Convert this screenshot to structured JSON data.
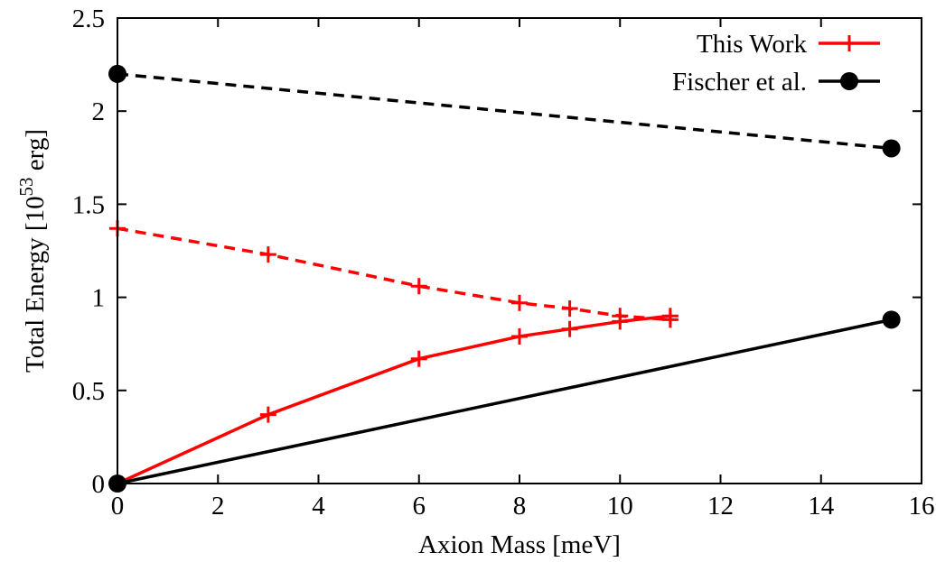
{
  "chart_data": {
    "type": "line",
    "xlabel": "Axion Mass [meV]",
    "ylabel": {
      "main": "Total Energy [10",
      "exp": "53",
      "tail": " erg]"
    },
    "xlim": [
      0,
      16
    ],
    "ylim": [
      0,
      2.5
    ],
    "xticks": [
      "0",
      "2",
      "4",
      "6",
      "8",
      "10",
      "12",
      "14",
      "16"
    ],
    "yticks": [
      "0",
      "0.5",
      "1",
      "1.5",
      "2",
      "2.5"
    ],
    "xtick_values": [
      0,
      2,
      4,
      6,
      8,
      10,
      12,
      14,
      16
    ],
    "ytick_values": [
      0,
      0.5,
      1,
      1.5,
      2,
      2.5
    ],
    "grid": false,
    "legend_position": "top-right",
    "series": [
      {
        "name": "This Work",
        "color": "#ff0000",
        "marker": "plus",
        "legend": true,
        "dash": "solid",
        "x": [
          0,
          3,
          6,
          8,
          9,
          10,
          11
        ],
        "y": [
          0,
          0.37,
          0.67,
          0.79,
          0.83,
          0.87,
          0.9
        ]
      },
      {
        "name": "",
        "color": "#ff0000",
        "marker": "plus",
        "legend": false,
        "dash": "dashed",
        "x": [
          0,
          3,
          6,
          8,
          9,
          10,
          11
        ],
        "y": [
          1.37,
          1.23,
          1.06,
          0.97,
          0.94,
          0.9,
          0.88
        ]
      },
      {
        "name": "Fischer et al.",
        "color": "#000000",
        "marker": "circle",
        "legend": true,
        "dash": "solid",
        "x": [
          0,
          15.4
        ],
        "y": [
          0,
          0.88
        ]
      },
      {
        "name": "",
        "color": "#000000",
        "marker": "circle",
        "legend": false,
        "dash": "dashed",
        "x": [
          0,
          15.4
        ],
        "y": [
          2.2,
          1.8
        ]
      }
    ]
  }
}
